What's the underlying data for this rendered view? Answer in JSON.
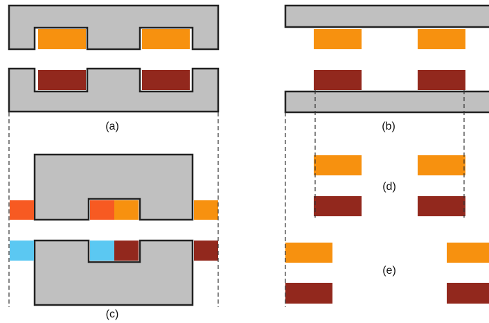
{
  "labels": {
    "a": "(a)",
    "b": "(b)",
    "c": "(c)",
    "d": "(d)",
    "e": "(e)"
  },
  "colors": {
    "core": "#c0c0c0",
    "outline": "#222222",
    "orange": "#f7910f",
    "dark_red": "#92281d",
    "red_orange": "#f75a22",
    "light_blue": "#5bc8f2",
    "guide_line": "#333333"
  }
}
